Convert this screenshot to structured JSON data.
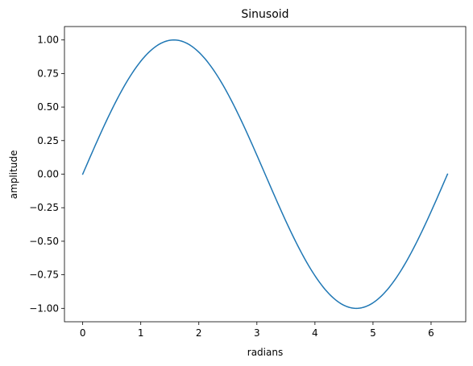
{
  "chart_data": {
    "type": "line",
    "title": "Sinusoid",
    "xlabel": "radians",
    "ylabel": "amplitude",
    "xlim": [
      -0.3142,
      6.5973
    ],
    "ylim": [
      -1.1,
      1.1
    ],
    "x_ticks": [
      0,
      1,
      2,
      3,
      4,
      5,
      6
    ],
    "x_tick_labels": [
      "0",
      "1",
      "2",
      "3",
      "4",
      "5",
      "6"
    ],
    "y_ticks": [
      1.0,
      0.75,
      0.5,
      0.25,
      0.0,
      -0.25,
      -0.5,
      -0.75,
      -1.0
    ],
    "y_tick_labels": [
      "1.00",
      "0.75",
      "0.50",
      "0.25",
      "0.00",
      "−0.25",
      "−0.50",
      "−0.75",
      "−1.00"
    ],
    "grid": false,
    "series": [
      {
        "color": "#1f77b4",
        "x": [
          0,
          0.3927,
          0.7854,
          1.1781,
          1.5708,
          1.9635,
          2.3562,
          2.7489,
          3.1416,
          3.5343,
          3.927,
          4.3197,
          4.7124,
          5.1051,
          5.4978,
          5.8905,
          6.2832
        ],
        "y": [
          0,
          0.3827,
          0.7071,
          0.9239,
          1.0,
          0.9239,
          0.7071,
          0.3827,
          0,
          -0.3827,
          -0.7071,
          -0.9239,
          -1.0,
          -0.9239,
          -0.7071,
          -0.3827,
          0
        ]
      }
    ]
  }
}
